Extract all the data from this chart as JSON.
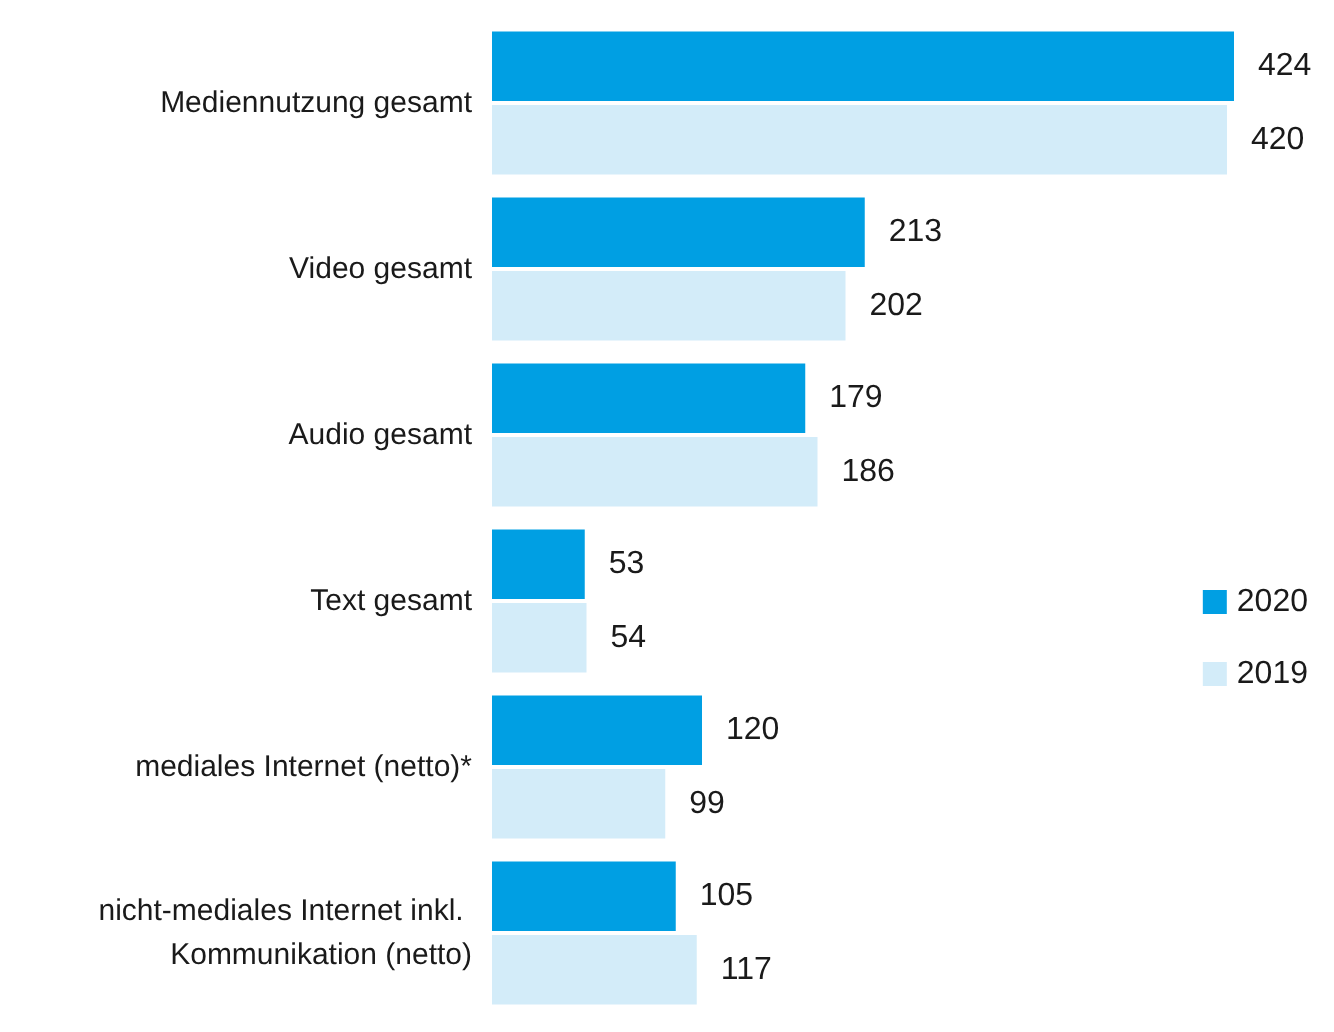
{
  "chart_data": {
    "type": "bar",
    "orientation": "horizontal",
    "categories": [
      "Mediennutzung gesamt",
      "Video gesamt",
      "Audio gesamt",
      "Text gesamt",
      "mediales Internet (netto)*",
      "nicht-mediales Internet inkl. Kommunikation (netto)"
    ],
    "series": [
      {
        "name": "2020",
        "color": "#009fe3",
        "values": [
          424,
          213,
          179,
          53,
          120,
          105
        ]
      },
      {
        "name": "2019",
        "color": "#d3ecf9",
        "values": [
          420,
          202,
          186,
          54,
          99,
          117
        ]
      }
    ],
    "data_labels": true,
    "legend": "right"
  }
}
